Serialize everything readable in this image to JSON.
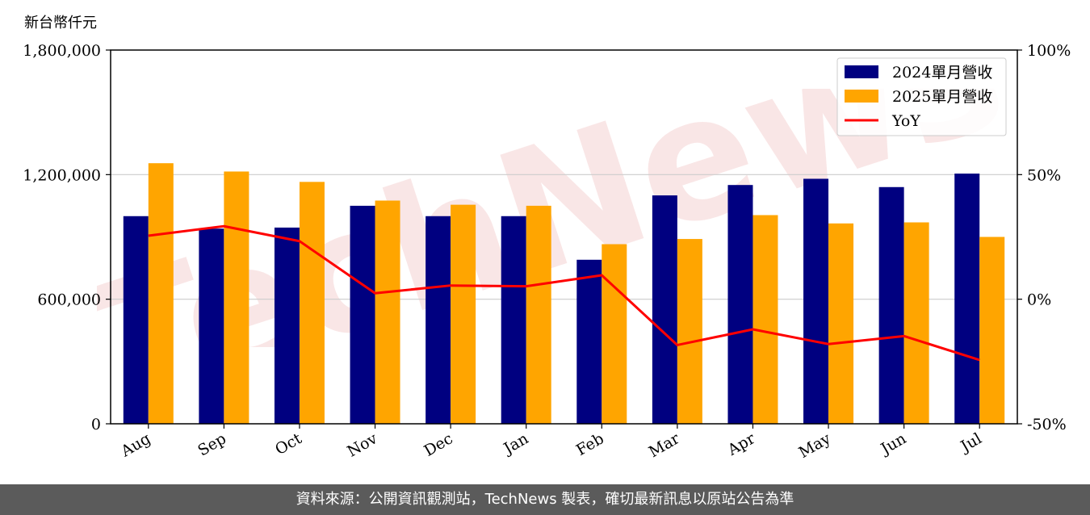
{
  "unit_label": "新台幣仟元",
  "footer_text": "資料來源：公開資訊觀測站，TechNews 製表，確切最新訊息以原站公告為準",
  "watermark_text": "TechNews",
  "colors": {
    "bar_2024": "#000080",
    "bar_2025": "#FFA500",
    "line_yoy": "#FF0000",
    "footer_bg": "#5b5b5b",
    "watermark": "#f3c9c9"
  },
  "chart_data": {
    "type": "bar",
    "categories": [
      "Aug",
      "Sep",
      "Oct",
      "Nov",
      "Dec",
      "Jan",
      "Feb",
      "Mar",
      "Apr",
      "May",
      "Jun",
      "Jul"
    ],
    "series": [
      {
        "name": "2024單月營收",
        "values": [
          1000000,
          940000,
          945000,
          1050000,
          1000000,
          1000000,
          790000,
          1100000,
          1150000,
          1180000,
          1140000,
          1205000
        ]
      },
      {
        "name": "2025單月營收",
        "values": [
          1255000,
          1215000,
          1165000,
          1075000,
          1055000,
          1050000,
          865000,
          890000,
          1005000,
          965000,
          970000,
          900000
        ]
      }
    ],
    "line_series": {
      "name": "YoY",
      "axis": "right",
      "values": [
        25.5,
        29.3,
        23.3,
        2.4,
        5.5,
        5.2,
        9.6,
        -18.4,
        -12.1,
        -18.0,
        -14.8,
        -24.4
      ]
    },
    "ylim": [
      0,
      1800000
    ],
    "yticks": [
      0,
      600000,
      1200000,
      1800000
    ],
    "ytick_labels": [
      "0",
      "600,000",
      "1,200,000",
      "1,800,000"
    ],
    "y2lim": [
      -50,
      100
    ],
    "y2ticks": [
      -50,
      0,
      50,
      100
    ],
    "y2tick_labels": [
      "-50%",
      "0%",
      "50%",
      "100%"
    ],
    "grid": true,
    "legend_position": "top-right",
    "legend": [
      "2024單月營收",
      "2025單月營收",
      "YoY"
    ]
  }
}
